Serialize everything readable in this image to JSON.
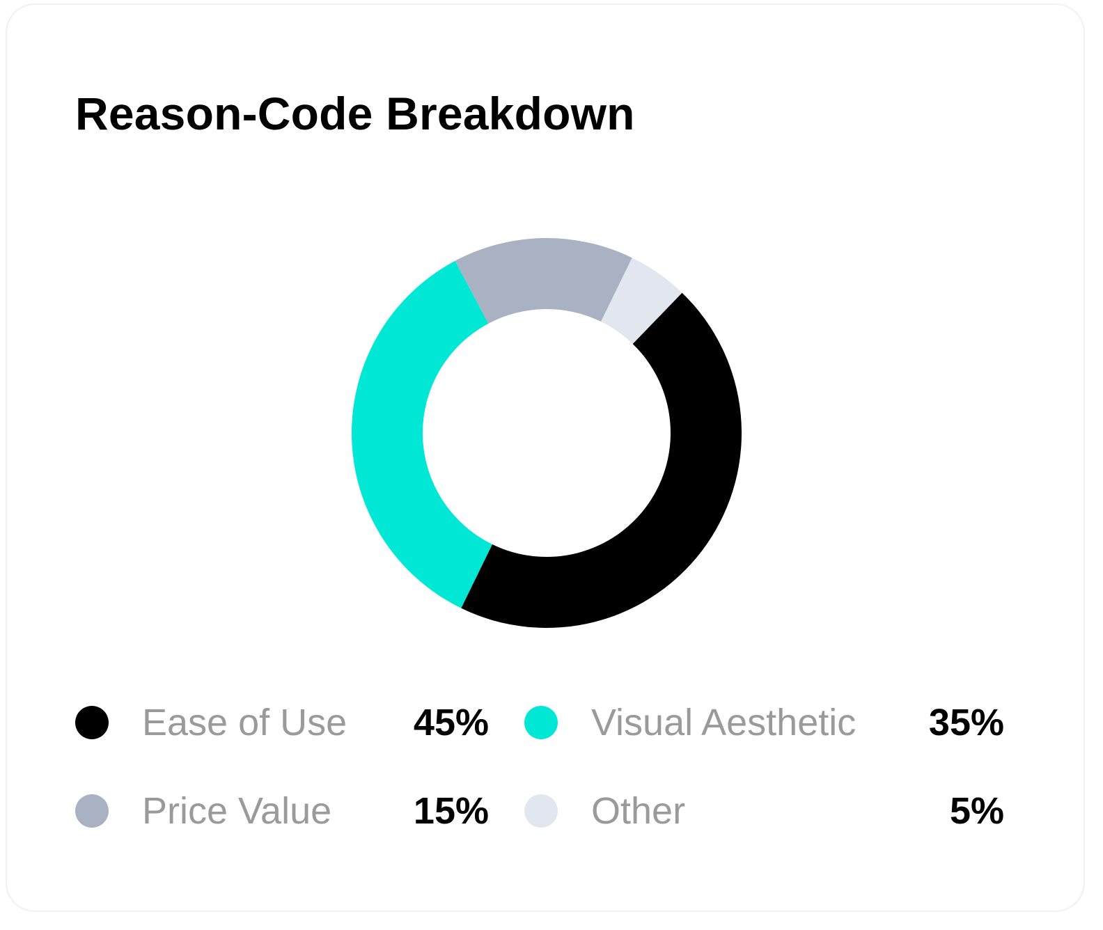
{
  "card": {
    "title": "Reason-Code Breakdown"
  },
  "chart_data": {
    "type": "pie",
    "variant": "donut",
    "title": "Reason-Code Breakdown",
    "categories": [
      "Ease of Use",
      "Visual Aesthetic",
      "Price Value",
      "Other"
    ],
    "values": [
      45,
      35,
      15,
      5
    ],
    "unit": "%",
    "colors": [
      "#000000",
      "#00e8d5",
      "#a8b2c3",
      "#e2e7ef"
    ],
    "legend_position": "bottom"
  },
  "legend": [
    {
      "label": "Ease of Use",
      "value": "45%",
      "color": "#000000"
    },
    {
      "label": "Visual Aesthetic",
      "value": "35%",
      "color": "#00e8d5"
    },
    {
      "label": "Price Value",
      "value": "15%",
      "color": "#a8b2c3"
    },
    {
      "label": "Other",
      "value": "5%",
      "color": "#e2e7ef"
    }
  ]
}
